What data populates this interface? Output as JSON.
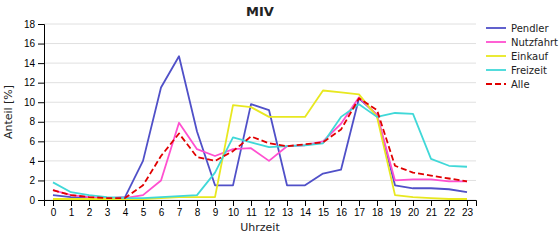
{
  "chart_data": {
    "type": "line",
    "title": "MIV",
    "x_label": "Uhrzeit",
    "y_label": "Anteil [%]",
    "x": [
      0,
      1,
      2,
      3,
      4,
      5,
      6,
      7,
      8,
      9,
      10,
      11,
      12,
      13,
      14,
      15,
      16,
      17,
      18,
      19,
      20,
      21,
      22,
      23
    ],
    "xlim": [
      -0.5,
      23.5
    ],
    "xticks": [
      0,
      1,
      2,
      3,
      4,
      5,
      6,
      7,
      8,
      9,
      10,
      11,
      12,
      13,
      14,
      15,
      16,
      17,
      18,
      19,
      20,
      21,
      22,
      23
    ],
    "ylim": [
      0,
      18
    ],
    "yticks": [
      0,
      2,
      4,
      6,
      8,
      10,
      12,
      14,
      16,
      18
    ],
    "grid": "y",
    "legend": "upper right",
    "series": [
      {
        "name": "Pendler",
        "color": "#5050c8",
        "line_style": "solid",
        "values": [
          0.5,
          0.3,
          0.2,
          0.2,
          0.3,
          4.0,
          11.5,
          14.7,
          7.0,
          1.5,
          1.5,
          9.8,
          9.2,
          1.5,
          1.5,
          2.7,
          3.1,
          10.4,
          8.7,
          1.5,
          1.2,
          1.2,
          1.1,
          0.8
        ]
      },
      {
        "name": "Nutzfahrt",
        "color": "#ff50d0",
        "line_style": "solid",
        "values": [
          1.0,
          0.5,
          0.3,
          0.2,
          0.2,
          0.5,
          2.0,
          7.9,
          5.2,
          4.5,
          5.2,
          5.3,
          4.0,
          5.5,
          5.6,
          6.0,
          7.8,
          10.5,
          8.7,
          2.0,
          2.1,
          2.1,
          1.9,
          1.9
        ]
      },
      {
        "name": "Einkauf",
        "color": "#e8e820",
        "line_style": "solid",
        "values": [
          0.1,
          0.1,
          0.1,
          0.1,
          0.1,
          0.1,
          0.2,
          0.3,
          0.3,
          0.3,
          9.7,
          9.5,
          8.5,
          8.5,
          8.5,
          11.2,
          11.0,
          10.8,
          8.5,
          0.5,
          0.3,
          0.2,
          0.1,
          0.1
        ]
      },
      {
        "name": "Freizeit",
        "color": "#40d8d8",
        "line_style": "solid",
        "values": [
          1.8,
          0.8,
          0.5,
          0.3,
          0.2,
          0.2,
          0.3,
          0.4,
          0.5,
          2.8,
          6.4,
          5.9,
          5.4,
          5.5,
          5.6,
          5.8,
          8.5,
          9.8,
          8.5,
          8.9,
          8.8,
          4.2,
          3.5,
          3.4
        ]
      },
      {
        "name": "Alle",
        "color": "#e00000",
        "line_style": "dashed",
        "values": [
          1.0,
          0.5,
          0.3,
          0.2,
          0.2,
          1.5,
          4.5,
          6.8,
          4.4,
          4.0,
          5.0,
          6.5,
          5.8,
          5.5,
          5.7,
          5.9,
          7.2,
          10.4,
          9.2,
          3.5,
          2.8,
          2.5,
          2.2,
          1.9
        ]
      }
    ]
  }
}
